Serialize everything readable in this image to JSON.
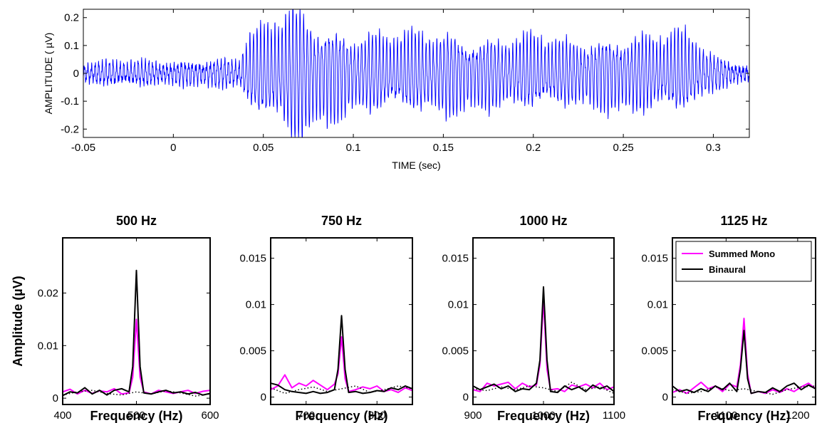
{
  "colors": {
    "waveform": "#0000ff",
    "summed_mono": "#ff00ff",
    "binaural": "#000000",
    "noise": "#000000"
  },
  "chart_data": [
    {
      "type": "line",
      "title": "",
      "xlabel": "TIME (sec)",
      "ylabel": "AMPLITUDE ( µV)",
      "xlim": [
        -0.05,
        0.32
      ],
      "ylim": [
        -0.23,
        0.23
      ],
      "xticks": [
        -0.05,
        0,
        0.05,
        0.1,
        0.15,
        0.2,
        0.25,
        0.3
      ],
      "xtick_labels": [
        "-0.05",
        "0",
        "0.05",
        "0.1",
        "0.15",
        "0.2",
        "0.25",
        "0.3"
      ],
      "yticks": [
        -0.2,
        -0.1,
        0,
        0.1,
        0.2
      ],
      "ytick_labels": [
        "-0.2",
        "-0.1",
        "0",
        "0.1",
        "0.2"
      ],
      "grid": false,
      "series": [
        {
          "style": "oscillation",
          "frequency_hz": 500,
          "envelope_t": [
            -0.05,
            -0.02,
            0.0,
            0.03,
            0.037,
            0.04,
            0.05,
            0.06,
            0.065,
            0.075,
            0.09,
            0.1,
            0.12,
            0.15,
            0.17,
            0.19,
            0.2,
            0.22,
            0.25,
            0.27,
            0.28,
            0.29,
            0.3,
            0.31,
            0.32
          ],
          "envelope_a": [
            0.03,
            0.035,
            0.03,
            0.04,
            0.04,
            0.1,
            0.13,
            0.17,
            0.2,
            0.17,
            0.13,
            0.11,
            0.11,
            0.12,
            0.1,
            0.1,
            0.11,
            0.09,
            0.11,
            0.11,
            0.12,
            0.1,
            0.05,
            0.03,
            0.02
          ]
        }
      ]
    },
    {
      "type": "line",
      "title": "500 Hz",
      "xlabel": "Frequency (Hz)",
      "ylabel": "Amplitude (µV)",
      "xlim": [
        400,
        600
      ],
      "ylim": [
        -0.0012,
        0.0305
      ],
      "xticks": [
        400,
        500,
        600
      ],
      "xtick_labels": [
        "400",
        "500",
        "600"
      ],
      "yticks": [
        0,
        0.01,
        0.02
      ],
      "ytick_labels": [
        "0",
        "0.01",
        "0.02"
      ],
      "series": [
        {
          "name": "Summed Mono",
          "x": [
            400,
            410,
            420,
            430,
            440,
            450,
            460,
            470,
            480,
            490,
            495,
            500,
            505,
            510,
            520,
            530,
            540,
            550,
            560,
            570,
            580,
            590,
            600
          ],
          "y": [
            0.0012,
            0.0017,
            0.0008,
            0.0015,
            0.0009,
            0.0014,
            0.0012,
            0.0018,
            0.0008,
            0.001,
            0.004,
            0.015,
            0.004,
            0.0012,
            0.0008,
            0.0015,
            0.0012,
            0.0009,
            0.0012,
            0.0015,
            0.0009,
            0.0013,
            0.0015
          ]
        },
        {
          "name": "Binaural",
          "x": [
            400,
            410,
            420,
            430,
            440,
            450,
            460,
            470,
            480,
            490,
            495,
            500,
            505,
            510,
            520,
            530,
            540,
            550,
            560,
            570,
            580,
            590,
            600
          ],
          "y": [
            0.0005,
            0.0012,
            0.001,
            0.002,
            0.0008,
            0.0015,
            0.0006,
            0.0015,
            0.0018,
            0.0012,
            0.006,
            0.0243,
            0.006,
            0.001,
            0.0008,
            0.0012,
            0.0015,
            0.001,
            0.0012,
            0.0008,
            0.0011,
            0.0006,
            0.0009
          ]
        },
        {
          "name": "",
          "style": "dotted",
          "x": [
            400,
            420,
            440,
            460,
            480,
            500,
            520,
            540,
            560,
            580,
            600
          ],
          "y": [
            0.0006,
            0.0012,
            0.0015,
            0.0009,
            0.0006,
            0.0012,
            0.0008,
            0.0014,
            0.001,
            0.0004,
            0.0008
          ]
        }
      ]
    },
    {
      "type": "line",
      "title": "750 Hz",
      "xlabel": "Frequency (Hz)",
      "ylabel": "",
      "xlim": [
        650,
        850
      ],
      "ylim": [
        -0.0008,
        0.0172
      ],
      "xticks": [
        700,
        800
      ],
      "xtick_labels": [
        "700",
        "800"
      ],
      "yticks": [
        0,
        0.005,
        0.01,
        0.015
      ],
      "ytick_labels": [
        "0",
        "0.005",
        "0.01",
        "0.015"
      ],
      "series": [
        {
          "name": "Summed Mono",
          "x": [
            650,
            660,
            670,
            680,
            690,
            700,
            710,
            720,
            730,
            740,
            745,
            750,
            755,
            760,
            770,
            780,
            790,
            800,
            810,
            820,
            830,
            840,
            850
          ],
          "y": [
            0.0008,
            0.0012,
            0.0024,
            0.001,
            0.0015,
            0.0012,
            0.0018,
            0.0013,
            0.0008,
            0.0014,
            0.0025,
            0.0065,
            0.002,
            0.0006,
            0.0008,
            0.0011,
            0.0009,
            0.0012,
            0.0006,
            0.0008,
            0.0005,
            0.001,
            0.0007
          ]
        },
        {
          "name": "Binaural",
          "x": [
            650,
            660,
            670,
            680,
            690,
            700,
            710,
            720,
            730,
            740,
            745,
            750,
            755,
            760,
            770,
            780,
            790,
            800,
            810,
            820,
            830,
            840,
            850
          ],
          "y": [
            0.0015,
            0.0013,
            0.0008,
            0.0006,
            0.0005,
            0.0004,
            0.0006,
            0.0004,
            0.0005,
            0.0008,
            0.003,
            0.0088,
            0.003,
            0.0005,
            0.0006,
            0.0004,
            0.0005,
            0.0007,
            0.0006,
            0.001,
            0.0008,
            0.0012,
            0.0009
          ]
        },
        {
          "name": "",
          "style": "dotted",
          "x": [
            650,
            670,
            690,
            710,
            730,
            750,
            770,
            790,
            810,
            830,
            850
          ],
          "y": [
            0.001,
            0.0004,
            0.0008,
            0.0011,
            0.0006,
            0.0009,
            0.0012,
            0.0005,
            0.0008,
            0.0012,
            0.0009
          ]
        }
      ]
    },
    {
      "type": "line",
      "title": "1000 Hz",
      "xlabel": "Frequency (Hz)",
      "ylabel": "",
      "xlim": [
        900,
        1100
      ],
      "ylim": [
        -0.0008,
        0.0172
      ],
      "xticks": [
        900,
        1000,
        1100
      ],
      "xtick_labels": [
        "900",
        "1000",
        "1100"
      ],
      "yticks": [
        0,
        0.005,
        0.01,
        0.015
      ],
      "ytick_labels": [
        "0",
        "0.005",
        "0.01",
        "0.015"
      ],
      "series": [
        {
          "name": "Summed Mono",
          "x": [
            900,
            910,
            920,
            930,
            940,
            950,
            960,
            970,
            980,
            990,
            995,
            1000,
            1005,
            1010,
            1020,
            1030,
            1040,
            1050,
            1060,
            1070,
            1080,
            1090,
            1100
          ],
          "y": [
            0.0008,
            0.0006,
            0.0015,
            0.0012,
            0.0014,
            0.0016,
            0.0009,
            0.0015,
            0.0011,
            0.0013,
            0.0035,
            0.0105,
            0.003,
            0.0008,
            0.0009,
            0.0006,
            0.0013,
            0.0011,
            0.0014,
            0.001,
            0.0015,
            0.0008,
            0.0011
          ]
        },
        {
          "name": "Binaural",
          "x": [
            900,
            910,
            920,
            930,
            940,
            950,
            960,
            970,
            980,
            990,
            995,
            1000,
            1005,
            1010,
            1020,
            1030,
            1040,
            1050,
            1060,
            1070,
            1080,
            1090,
            1100
          ],
          "y": [
            0.0012,
            0.0008,
            0.0011,
            0.0014,
            0.0009,
            0.0012,
            0.0006,
            0.0009,
            0.0008,
            0.0015,
            0.004,
            0.0119,
            0.004,
            0.0006,
            0.0005,
            0.0012,
            0.0008,
            0.0011,
            0.0006,
            0.0013,
            0.0009,
            0.0012,
            0.0006
          ]
        },
        {
          "name": "",
          "style": "dotted",
          "x": [
            900,
            920,
            940,
            960,
            980,
            1000,
            1020,
            1040,
            1060,
            1080,
            1100
          ],
          "y": [
            0.0009,
            0.0007,
            0.0011,
            0.0008,
            0.0012,
            0.001,
            0.0006,
            0.0016,
            0.0008,
            0.0011,
            0.0004
          ]
        }
      ]
    },
    {
      "type": "line",
      "title": "1125 Hz",
      "xlabel": "Frequency (Hz)",
      "ylabel": "",
      "xlim": [
        1025,
        1225
      ],
      "ylim": [
        -0.0008,
        0.0172
      ],
      "xticks": [
        1100,
        1200
      ],
      "xtick_labels": [
        "1100",
        "1200"
      ],
      "yticks": [
        0,
        0.005,
        0.01,
        0.015
      ],
      "ytick_labels": [
        "0",
        "0.005",
        "0.01",
        "0.015"
      ],
      "legend": {
        "position": "top-right",
        "entries": [
          "Summed Mono",
          "Binaural"
        ]
      },
      "series": [
        {
          "name": "Summed Mono",
          "x": [
            1025,
            1035,
            1045,
            1055,
            1065,
            1075,
            1085,
            1095,
            1105,
            1115,
            1120,
            1125,
            1130,
            1135,
            1145,
            1155,
            1165,
            1175,
            1185,
            1195,
            1205,
            1215,
            1225
          ],
          "y": [
            0.0005,
            0.0008,
            0.0004,
            0.001,
            0.0016,
            0.0009,
            0.0012,
            0.0006,
            0.0014,
            0.0011,
            0.0035,
            0.0085,
            0.0025,
            0.0004,
            0.0006,
            0.0004,
            0.0008,
            0.0005,
            0.0009,
            0.0006,
            0.0011,
            0.0015,
            0.0009
          ]
        },
        {
          "name": "Binaural",
          "x": [
            1025,
            1035,
            1045,
            1055,
            1065,
            1075,
            1085,
            1095,
            1105,
            1115,
            1120,
            1125,
            1130,
            1135,
            1145,
            1155,
            1165,
            1175,
            1185,
            1195,
            1205,
            1215,
            1225
          ],
          "y": [
            0.0012,
            0.0006,
            0.0008,
            0.0005,
            0.0009,
            0.0006,
            0.0012,
            0.0008,
            0.0015,
            0.0006,
            0.003,
            0.0072,
            0.002,
            0.0004,
            0.0006,
            0.0005,
            0.001,
            0.0006,
            0.0012,
            0.0015,
            0.0008,
            0.0013,
            0.0009
          ]
        },
        {
          "name": "",
          "style": "dotted",
          "x": [
            1025,
            1045,
            1065,
            1085,
            1105,
            1125,
            1145,
            1165,
            1185,
            1205,
            1225
          ],
          "y": [
            0.0008,
            0.0004,
            0.0006,
            0.0011,
            0.0007,
            0.0009,
            0.0006,
            0.0003,
            0.0008,
            0.0011,
            0.0012
          ]
        }
      ]
    }
  ]
}
